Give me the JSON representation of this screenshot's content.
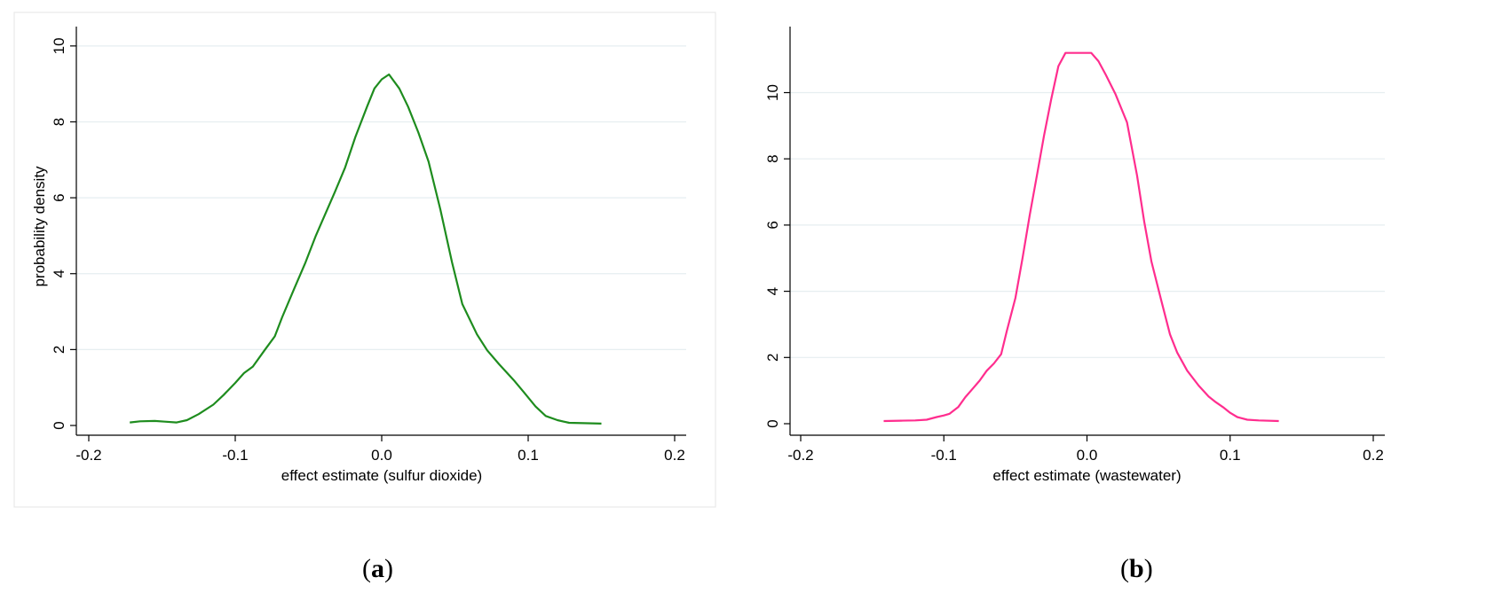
{
  "captions": [
    {
      "open": "(",
      "letter": "a",
      "close": ")"
    },
    {
      "open": "(",
      "letter": "b",
      "close": ")"
    }
  ],
  "chart_data": [
    {
      "type": "line",
      "title": "",
      "xlabel": "effect estimate (sulfur dioxide)",
      "ylabel": "probability density",
      "xlim": [
        -0.2,
        0.2
      ],
      "ylim": [
        0,
        10.3
      ],
      "xticks": [
        -0.2,
        -0.1,
        0.0,
        0.1,
        0.2
      ],
      "xtick_labels": [
        "-0.2",
        "-0.1",
        "0.0",
        "0.1",
        "0.2"
      ],
      "yticks": [
        0,
        2,
        4,
        6,
        8,
        10
      ],
      "ytick_labels": [
        "0",
        "2",
        "4",
        "6",
        "8",
        "10"
      ],
      "grid": true,
      "color": "#1e8c1e",
      "series": [
        {
          "name": "sulfur dioxide",
          "x": [
            -0.172,
            -0.165,
            -0.155,
            -0.148,
            -0.14,
            -0.133,
            -0.125,
            -0.115,
            -0.108,
            -0.1,
            -0.094,
            -0.088,
            -0.08,
            -0.073,
            -0.068,
            -0.06,
            -0.052,
            -0.045,
            -0.038,
            -0.032,
            -0.025,
            -0.018,
            -0.01,
            -0.005,
            0.0,
            0.005,
            0.012,
            0.018,
            0.025,
            0.032,
            0.04,
            0.048,
            0.055,
            0.065,
            0.072,
            0.08,
            0.09,
            0.097,
            0.105,
            0.112,
            0.12,
            0.128,
            0.138,
            0.15
          ],
          "y": [
            0.08,
            0.11,
            0.12,
            0.1,
            0.08,
            0.14,
            0.3,
            0.55,
            0.8,
            1.12,
            1.38,
            1.55,
            1.98,
            2.35,
            2.85,
            3.58,
            4.3,
            5.0,
            5.62,
            6.15,
            6.8,
            7.6,
            8.4,
            8.88,
            9.12,
            9.25,
            8.88,
            8.4,
            7.72,
            6.95,
            5.7,
            4.3,
            3.2,
            2.4,
            1.98,
            1.62,
            1.2,
            0.88,
            0.5,
            0.25,
            0.14,
            0.07,
            0.06,
            0.05
          ]
        }
      ]
    },
    {
      "type": "line",
      "title": "",
      "xlabel": "effect estimate (wastewater)",
      "ylabel": "probability density",
      "xlim": [
        -0.2,
        0.2
      ],
      "ylim": [
        0,
        11.7
      ],
      "xticks": [
        -0.2,
        -0.1,
        0.0,
        0.1,
        0.2
      ],
      "xtick_labels": [
        "-0.2",
        "-0.1",
        "0.0",
        "0.1",
        "0.2"
      ],
      "yticks": [
        0,
        2,
        4,
        6,
        8,
        10
      ],
      "ytick_labels": [
        "0",
        "2",
        "4",
        "6",
        "8",
        "10"
      ],
      "grid": true,
      "color": "#ff2d8e",
      "series": [
        {
          "name": "wastewater",
          "x": [
            -0.142,
            -0.13,
            -0.12,
            -0.112,
            -0.105,
            -0.1,
            -0.096,
            -0.09,
            -0.085,
            -0.08,
            -0.075,
            -0.07,
            -0.065,
            -0.06,
            -0.056,
            -0.05,
            -0.045,
            -0.04,
            -0.035,
            -0.03,
            -0.025,
            -0.02,
            -0.015,
            -0.01,
            -0.005,
            0.0,
            0.003,
            0.008,
            0.013,
            0.02,
            0.028,
            0.035,
            0.04,
            0.045,
            0.052,
            0.058,
            0.063,
            0.07,
            0.078,
            0.085,
            0.09,
            0.095,
            0.1,
            0.105,
            0.112,
            0.12,
            0.134
          ],
          "y": [
            0.08,
            0.09,
            0.1,
            0.12,
            0.2,
            0.25,
            0.3,
            0.5,
            0.8,
            1.05,
            1.3,
            1.6,
            1.82,
            2.1,
            2.8,
            3.8,
            5.0,
            6.3,
            7.5,
            8.7,
            9.8,
            10.8,
            11.2,
            11.2,
            11.2,
            11.2,
            11.2,
            10.95,
            10.55,
            9.95,
            9.1,
            7.5,
            6.1,
            4.9,
            3.7,
            2.7,
            2.15,
            1.6,
            1.15,
            0.82,
            0.65,
            0.5,
            0.33,
            0.2,
            0.12,
            0.1,
            0.08
          ]
        }
      ]
    }
  ]
}
